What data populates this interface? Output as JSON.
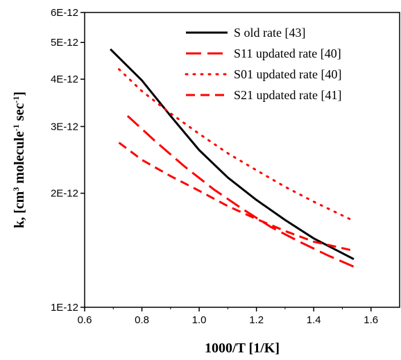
{
  "chart_data": {
    "type": "line",
    "xlabel": "1000/T [1/K]",
    "ylabel": {
      "parts": [
        {
          "text": "k, [cm",
          "sup": false
        },
        {
          "text": "3",
          "sup": true
        },
        {
          "text": " molecule",
          "sup": false
        },
        {
          "text": "-1",
          "sup": true
        },
        {
          "text": " sec",
          "sup": false
        },
        {
          "text": "-1",
          "sup": true
        },
        {
          "text": "]",
          "sup": false
        }
      ]
    },
    "xlim": [
      0.6,
      1.7
    ],
    "ylim": [
      1e-12,
      6e-12
    ],
    "yscale": "log",
    "x_ticks": [
      0.6,
      0.8,
      1.0,
      1.2,
      1.4,
      1.6
    ],
    "x_tick_labels": [
      "0.6",
      "0.8",
      "1.0",
      "1.2",
      "1.4",
      "1.6"
    ],
    "y_ticks": [
      1e-12,
      2e-12,
      3e-12,
      4e-12,
      5e-12,
      6e-12
    ],
    "y_tick_labels": [
      "1E-12",
      "2E-12",
      "3E-12",
      "4E-12",
      "5E-12",
      "6E-12"
    ],
    "grid": false,
    "legend_position": "top-right",
    "series": [
      {
        "name": "S old rate [43]",
        "color": "#000000",
        "style": "solid",
        "x": [
          0.69,
          0.8,
          0.9,
          1.0,
          1.1,
          1.2,
          1.3,
          1.4,
          1.54
        ],
        "y": [
          4.8e-12,
          3.97e-12,
          3.2e-12,
          2.6e-12,
          2.2e-12,
          1.92e-12,
          1.7e-12,
          1.52e-12,
          1.34e-12
        ]
      },
      {
        "name": "S11 updated rate [40]",
        "color": "#ff0000",
        "style": "longdash",
        "x": [
          0.75,
          0.85,
          0.95,
          1.05,
          1.15,
          1.25,
          1.35,
          1.45,
          1.54
        ],
        "y": [
          3.2e-12,
          2.73e-12,
          2.35e-12,
          2.05e-12,
          1.82e-12,
          1.63e-12,
          1.49e-12,
          1.37e-12,
          1.28e-12
        ]
      },
      {
        "name": "S01 updated rate [40]",
        "color": "#ff0000",
        "style": "dotted",
        "x": [
          0.72,
          0.8,
          0.9,
          1.0,
          1.1,
          1.2,
          1.3,
          1.4,
          1.54
        ],
        "y": [
          4.25e-12,
          3.72e-12,
          3.25e-12,
          2.87e-12,
          2.55e-12,
          2.3e-12,
          2.08e-12,
          1.9e-12,
          1.69e-12
        ]
      },
      {
        "name": "S21 updated rate [41]",
        "color": "#ff0000",
        "style": "dash",
        "x": [
          0.72,
          0.8,
          0.9,
          1.0,
          1.1,
          1.2,
          1.3,
          1.4,
          1.54
        ],
        "y": [
          2.72e-12,
          2.45e-12,
          2.22e-12,
          2.03e-12,
          1.85e-12,
          1.71e-12,
          1.59e-12,
          1.49e-12,
          1.41e-12
        ]
      }
    ]
  }
}
